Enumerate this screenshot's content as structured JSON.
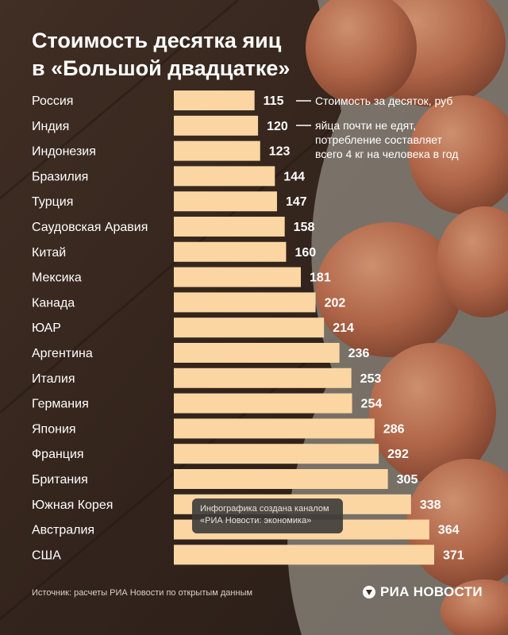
{
  "title_lines": [
    "Стоимость десятка яиц",
    "в «Большой двадцатке»"
  ],
  "note_lines": [
    "Стоимость за десяток, руб",
    "яйца почти не едят,",
    "потребление составляет",
    "всего 4 кг на человека в год"
  ],
  "credit_lines": [
    "Инфографика создана каналом",
    "«РИА Новости: экономика»"
  ],
  "source": "Источник: расчеты РИА Новости по открытым данным",
  "brand": "РИА НОВОСТИ",
  "colors": {
    "bar": "#fcd6a2",
    "text": "#ffffff"
  },
  "chart_data": {
    "type": "bar",
    "orientation": "horizontal",
    "categories": [
      "Россия",
      "Индия",
      "Индонезия",
      "Бразилия",
      "Турция",
      "Саудовская Аравия",
      "Китай",
      "Мексика",
      "Канада",
      "ЮАР",
      "Аргентина",
      "Италия",
      "Германия",
      "Япония",
      "Франция",
      "Британия",
      "Южная Корея",
      "Австралия",
      "США"
    ],
    "values": [
      115,
      120,
      123,
      144,
      147,
      158,
      160,
      181,
      202,
      214,
      236,
      253,
      254,
      286,
      292,
      305,
      338,
      364,
      371
    ],
    "title": "Стоимость десятка яиц в «Большой двадцатке»",
    "xlim": [
      0,
      371
    ]
  }
}
